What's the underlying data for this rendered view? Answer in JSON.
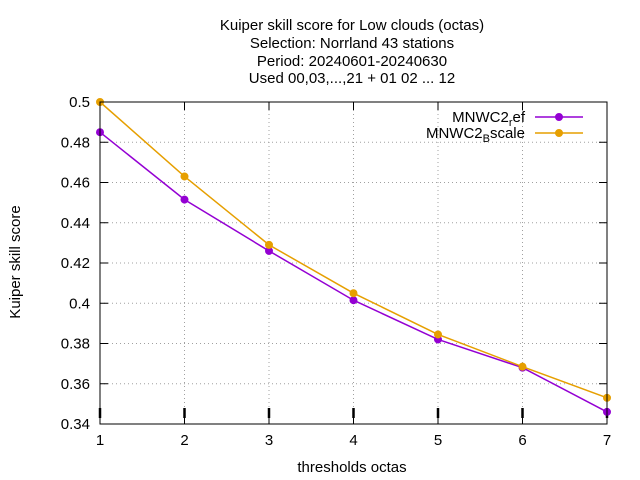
{
  "title_lines": [
    "Kuiper skill score  for Low clouds (octas)",
    "Selection: Norrland      43 stations",
    "Period: 20240601-20240630",
    "Used 00,03,...,21 + 01 02 ... 12"
  ],
  "chart_data": {
    "type": "line",
    "xlabel": "thresholds octas",
    "ylabel": "Kuiper skill score",
    "xlim": [
      1,
      7
    ],
    "ylim": [
      0.34,
      0.5
    ],
    "x": [
      1,
      2,
      3,
      4,
      5,
      6,
      7
    ],
    "xticks": [
      "1",
      "2",
      "3",
      "4",
      "5",
      "6",
      "7"
    ],
    "yticks": [
      "0.34",
      "0.36",
      "0.38",
      "0.4",
      "0.42",
      "0.44",
      "0.46",
      "0.48",
      "0.5"
    ],
    "grid": true,
    "legend_position": "top-right",
    "series": [
      {
        "name_base": "MNWC2",
        "name_sub": "r",
        "name_rest": "ef",
        "color": "#9400d3",
        "values": [
          0.485,
          0.4515,
          0.426,
          0.4015,
          0.382,
          0.368,
          0.346
        ]
      },
      {
        "name_base": "MNWC2",
        "name_sub": "B",
        "name_rest": "scale",
        "color": "#e69f00",
        "values": [
          0.5,
          0.463,
          0.429,
          0.405,
          0.3845,
          0.3685,
          0.353
        ]
      }
    ]
  }
}
